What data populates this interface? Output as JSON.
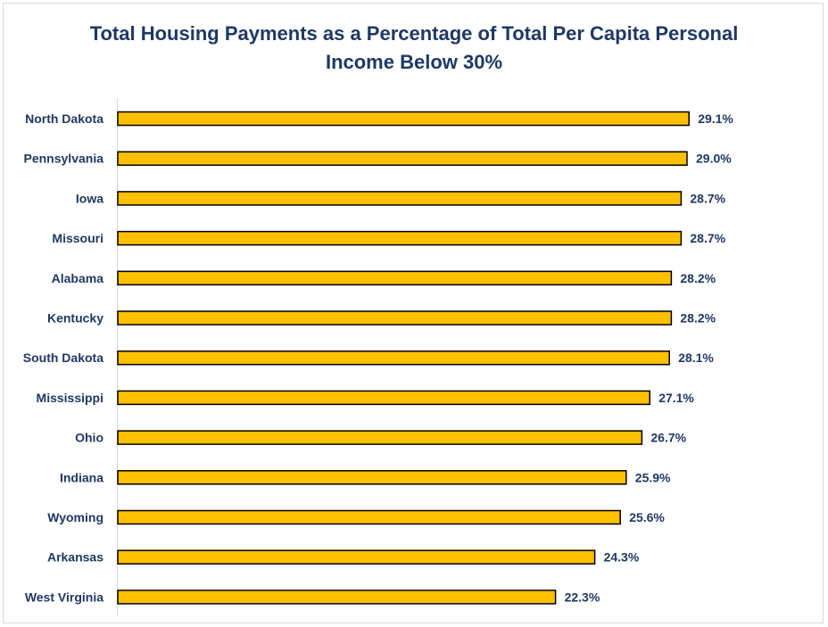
{
  "chart_data": {
    "type": "bar",
    "orientation": "horizontal",
    "title": "Total Housing Payments as a Percentage of Total Per Capita Personal Income Below 30%",
    "categories": [
      "North Dakota",
      "Pennsylvania",
      "Iowa",
      "Missouri",
      "Alabama",
      "Kentucky",
      "South Dakota",
      "Mississippi",
      "Ohio",
      "Indiana",
      "Wyoming",
      "Arkansas",
      "West Virginia"
    ],
    "values": [
      29.1,
      29.0,
      28.7,
      28.7,
      28.2,
      28.2,
      28.1,
      27.1,
      26.7,
      25.9,
      25.6,
      24.3,
      22.3
    ],
    "value_labels": [
      "29.1%",
      "29.0%",
      "28.7%",
      "28.7%",
      "28.2%",
      "28.2%",
      "28.1%",
      "27.1%",
      "26.7%",
      "25.9%",
      "25.6%",
      "24.3%",
      "22.3%"
    ],
    "xlim": [
      0,
      30
    ],
    "grid": false,
    "legend": "none",
    "bar_color": "#ffc000",
    "bar_border_color": "#000000",
    "text_color": "#1f3864"
  }
}
